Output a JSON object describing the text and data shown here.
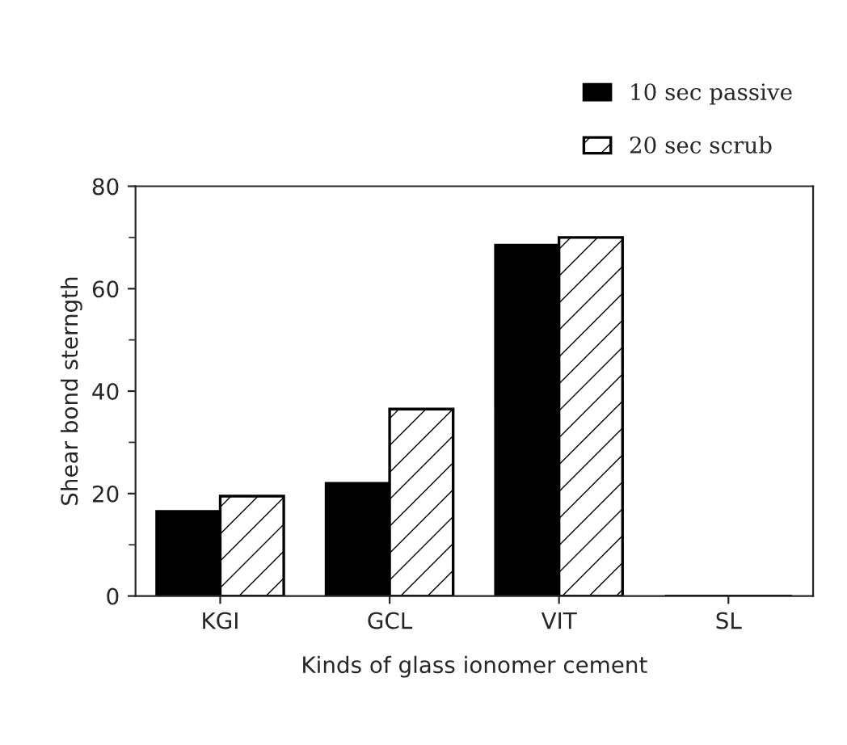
{
  "chart_data": {
    "type": "bar",
    "xlabel": "Kinds of glass ionomer cement",
    "ylabel": "Shear bond sterngth",
    "categories": [
      "KGI",
      "GCL",
      "VIT",
      "SL"
    ],
    "series": [
      {
        "name": "10 sec passive",
        "color": "#000000",
        "values": [
          16.5,
          22,
          68.5,
          0
        ]
      },
      {
        "name": "20 sec scrub",
        "color": "#000000",
        "values": [
          19.5,
          36.5,
          70,
          0
        ]
      }
    ],
    "ylim": [
      0,
      80
    ],
    "yticks": [
      0,
      20,
      40,
      60,
      80
    ],
    "grid": false,
    "legend": "top right"
  }
}
